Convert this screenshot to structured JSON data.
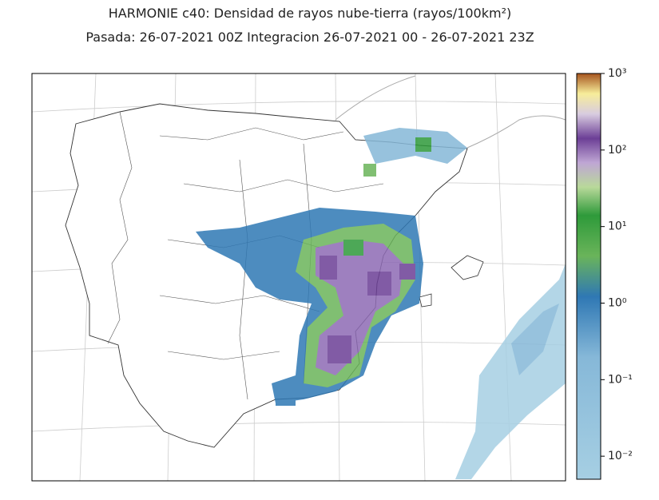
{
  "title": [
    "HARMONIE c40: Densidad de rayos nube-tierra (rayos/100km²)",
    "Pasada: 26-07-2021 00Z Integracion 26-07-2021 00 - 26-07-2021 23Z"
  ],
  "colorbar": {
    "ylim": [
      0.005,
      1000
    ],
    "log": true,
    "yticks": [
      {
        "value": 0.01,
        "label": "10⁻²"
      },
      {
        "value": 0.1,
        "label": "10⁻¹"
      },
      {
        "value": 1,
        "label": "10⁰"
      },
      {
        "value": 10,
        "label": "10¹"
      },
      {
        "value": 100,
        "label": "10²"
      },
      {
        "value": 1000,
        "label": "10³"
      }
    ]
  }
}
